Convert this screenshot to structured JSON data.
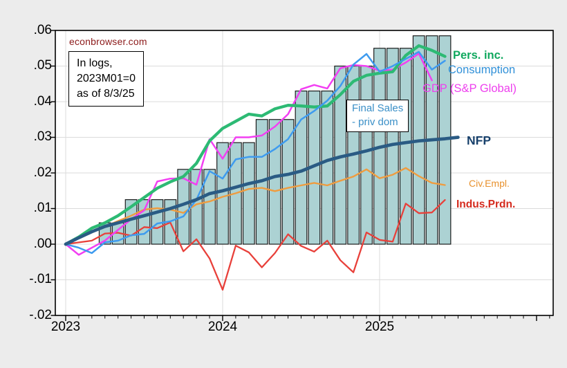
{
  "watermark": {
    "text": "econbrowser.com",
    "color": "#8C1A1A"
  },
  "note_box": {
    "lines": [
      "In logs,",
      "2023M01=0",
      "as of 8/3/25"
    ]
  },
  "final_sales_box": {
    "lines": [
      "Final Sales",
      "- priv dom"
    ],
    "color": "#3A8FC7"
  },
  "labels": {
    "pers_inc": {
      "text": "Pers. inc.",
      "color": "#10A85E"
    },
    "consumption": {
      "text": "Consumption",
      "color": "#3090D8"
    },
    "gdp": {
      "text": "GDP (S&P Global)",
      "color": "#EE3FEE"
    },
    "nfp": {
      "text": "NFP",
      "color": "#17406B"
    },
    "civ_empl": {
      "text": "Civ.Empl.",
      "color": "#E8912D"
    },
    "indus_prdn": {
      "text": "Indus.Prdn.",
      "color": "#D42A1D"
    }
  },
  "chart_data": {
    "type": "combo",
    "title": "econbrowser.com",
    "note": "In logs, 2023M01=0, as of 8/3/25",
    "x_start": "2023M01",
    "x_frequency": "monthly",
    "xlabel": "",
    "ylabel": "",
    "ylim": [
      -0.02,
      0.06
    ],
    "grid": true,
    "gridline_color": "#DBDBDB",
    "y_gridline_values": [
      -0.01,
      0,
      0.01,
      0.02,
      0.03,
      0.04,
      0.05
    ],
    "y_tick_values": [
      0.06,
      0.05,
      0.04,
      0.03,
      0.02,
      0.01,
      0,
      -0.01,
      -0.02
    ],
    "y_tick_labels": [
      ".06",
      ".05",
      ".04",
      ".03",
      ".02",
      ".01",
      ".00",
      "-.01",
      "-.02"
    ],
    "x_tick_labels": [
      "2023",
      "2024",
      "2025"
    ],
    "x_year_gridline_indices": [
      0,
      12,
      24
    ],
    "x_major_tick_indices": [
      0,
      12,
      24,
      36
    ],
    "bars": {
      "name": "Final Sales - priv dom",
      "color": "#ACD2D3",
      "stroke": "#1B1B1B",
      "start_index": 3,
      "values": [
        0.006,
        0.006,
        0.0125,
        0.0125,
        0.0125,
        0.0125,
        0.021,
        0.021,
        0.021,
        0.0285,
        0.0285,
        0.0285,
        0.035,
        0.035,
        0.035,
        0.043,
        0.043,
        0.043,
        0.05,
        0.05,
        0.05,
        0.055,
        0.055,
        0.055,
        0.0585,
        0.0585,
        0.0585
      ]
    },
    "series": [
      {
        "name": "Indus.Prdn.",
        "color": "#E8403A",
        "width": 2.3,
        "start_index": 0,
        "values": [
          0,
          0.0005,
          0.001,
          0.003,
          0.0032,
          0.0024,
          0.0048,
          0.0045,
          0.0061,
          -0.002,
          0.0014,
          -0.004,
          -0.0128,
          -0.0004,
          -0.0023,
          -0.0065,
          -0.0025,
          0.0028,
          -0.0005,
          -0.0021,
          0.001,
          -0.0045,
          -0.0079,
          0.0033,
          0.0012,
          0.0007,
          0.0114,
          0.0087,
          0.0089,
          0.0124
        ]
      },
      {
        "name": "Civ.Empl.",
        "color": "#EF9C3F",
        "width": 2.4,
        "start_index": 0,
        "values": [
          0,
          0.002,
          0.0035,
          0.005,
          0.0065,
          0.008,
          0.0097,
          0.0101,
          0.0097,
          0.0088,
          0.0112,
          0.012,
          0.0133,
          0.0143,
          0.0155,
          0.0158,
          0.0149,
          0.0158,
          0.0165,
          0.0172,
          0.0165,
          0.0178,
          0.019,
          0.021,
          0.0185,
          0.0195,
          0.0214,
          0.0191,
          0.0172,
          0.0166
        ]
      },
      {
        "name": "GDP (S&P Global)",
        "color": "#F23FF2",
        "width": 2.5,
        "start_index": 0,
        "values": [
          0,
          -0.003,
          -0.001,
          0.001,
          0.004,
          0.007,
          0.0095,
          0.0176,
          0.0184,
          0.0185,
          0.0167,
          0.0295,
          0.024,
          0.03,
          0.03,
          0.0305,
          0.033,
          0.0365,
          0.0435,
          0.0447,
          0.0437,
          0.0494,
          0.0503,
          0.05,
          0.0487,
          0.049,
          0.051,
          0.0535,
          0.046
        ]
      },
      {
        "name": "Pers. inc.",
        "color": "#2DBA74",
        "width": 4.3,
        "start_index": 0,
        "values": [
          0,
          0.002,
          0.0045,
          0.006,
          0.008,
          0.0105,
          0.0131,
          0.0157,
          0.0175,
          0.019,
          0.0227,
          0.029,
          0.0325,
          0.0345,
          0.0365,
          0.036,
          0.038,
          0.039,
          0.0388,
          0.0385,
          0.0388,
          0.042,
          0.0457,
          0.0474,
          0.048,
          0.0484,
          0.053,
          0.0557,
          0.0544,
          0.0527
        ]
      },
      {
        "name": "Consumption",
        "color": "#3E9BEF",
        "width": 2.5,
        "start_index": 0,
        "values": [
          0,
          -0.001,
          -0.0025,
          0.0005,
          0.001,
          0.0025,
          0.0029,
          0.0058,
          0.0064,
          0.0078,
          0.0125,
          0.0205,
          0.0184,
          0.0238,
          0.0245,
          0.0245,
          0.0267,
          0.0295,
          0.035,
          0.0374,
          0.0403,
          0.0444,
          0.0504,
          0.0534,
          0.0484,
          0.05,
          0.052,
          0.054,
          0.049,
          0.0515
        ]
      },
      {
        "name": "NFP",
        "color": "#2A5B84",
        "width": 4.7,
        "start_index": 0,
        "values": [
          0,
          0.0018,
          0.0035,
          0.005,
          0.006,
          0.007,
          0.008,
          0.009,
          0.01,
          0.0112,
          0.0125,
          0.0142,
          0.015,
          0.016,
          0.017,
          0.0178,
          0.019,
          0.0196,
          0.0205,
          0.022,
          0.0235,
          0.0245,
          0.0253,
          0.0262,
          0.0272,
          0.028,
          0.0285,
          0.029,
          0.0293,
          0.0296,
          0.03
        ]
      }
    ]
  }
}
